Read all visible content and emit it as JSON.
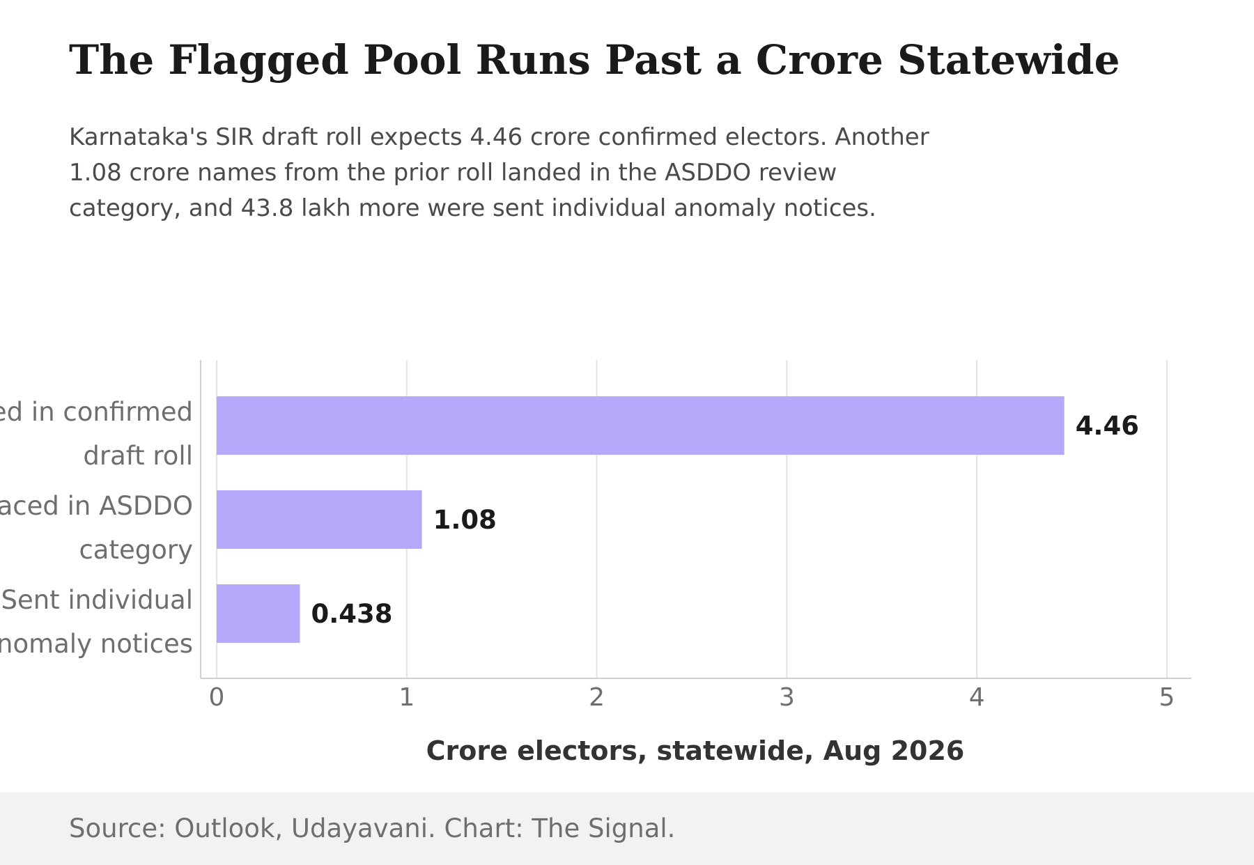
{
  "header": {
    "title": "The Flagged Pool Runs Past a Crore Statewide",
    "subtitle": "Karnataka's SIR draft roll expects 4.46 crore confirmed electors. Another 1.08 crore names from the prior roll landed in the ASDDO review category, and 43.8 lakh more were sent individual anomaly notices."
  },
  "footer": {
    "source": "Source: Outlook, Udayavani. Chart: The Signal."
  },
  "chart_data": {
    "type": "bar",
    "orientation": "horizontal",
    "categories": [
      [
        "Expected in confirmed",
        "draft roll"
      ],
      [
        "Placed in ASDDO",
        "category"
      ],
      [
        "Sent individual",
        "anomaly notices"
      ]
    ],
    "values": [
      4.46,
      1.08,
      0.438
    ],
    "value_labels": [
      "4.46",
      "1.08",
      "0.438"
    ],
    "xlabel": "Crore electors, statewide, Aug 2026",
    "xlim": [
      0,
      5
    ],
    "xticks": [
      "0",
      "1",
      "2",
      "3",
      "4",
      "5"
    ],
    "grid": "vertical",
    "colors": {
      "bar": "#b6a9fb",
      "grid": "#e3e3e3",
      "axis": "#d0d0d0",
      "tick_text": "#6e6e6e",
      "value_text": "#1a1a1a",
      "xlabel_text": "#333333"
    }
  }
}
